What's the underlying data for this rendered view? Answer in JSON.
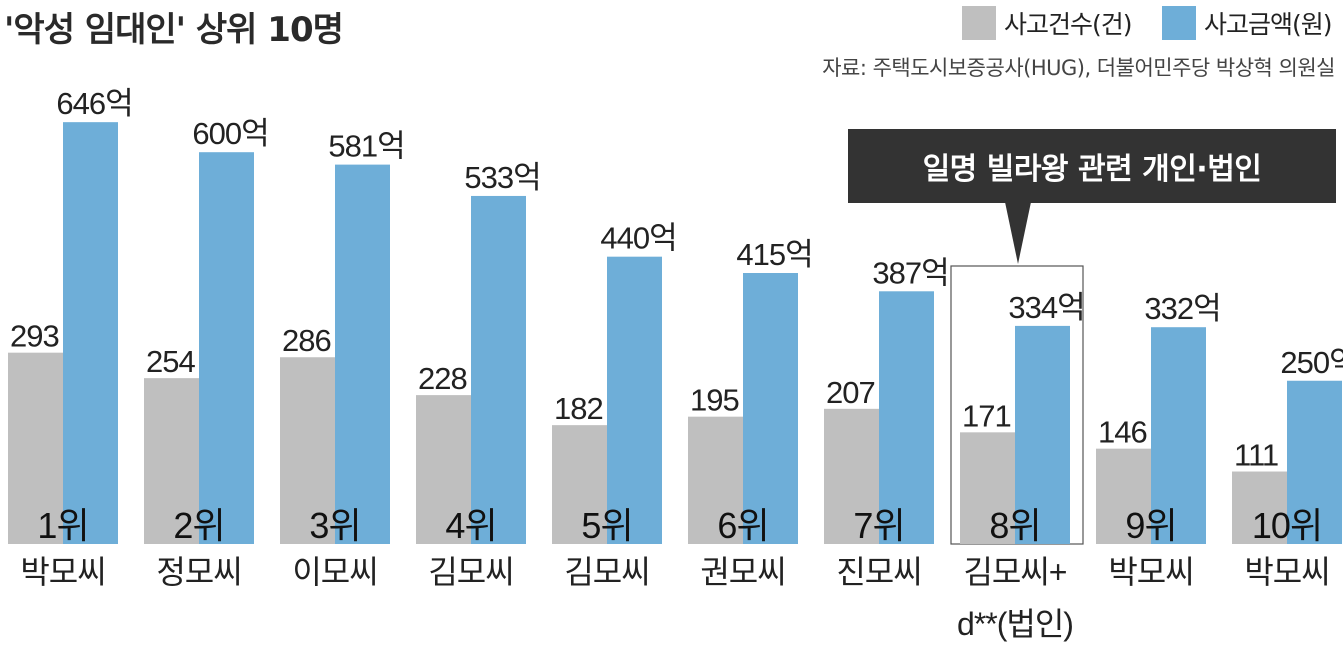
{
  "header": {
    "title": "'악성 임대인' 상위 10명",
    "source": "자료: 주택도시보증공사(HUG), 더불어민주당 박상혁 의원실"
  },
  "legend": [
    {
      "label": "사고건수(건)",
      "color": "#bfbfbf"
    },
    {
      "label": "사고금액(원)",
      "color": "#6eaed8"
    }
  ],
  "callout": {
    "text": "일명 빌라왕 관련 개인·법인",
    "target_rank": "8위"
  },
  "chart_data": {
    "type": "bar",
    "title": "'악성 임대인' 상위 10명",
    "categories": [
      "박모씨",
      "정모씨",
      "이모씨",
      "김모씨",
      "김모씨",
      "권모씨",
      "진모씨",
      "김모씨+\nd**(법인)",
      "박모씨",
      "박모씨"
    ],
    "ranks": [
      "1위",
      "2위",
      "3위",
      "4위",
      "5위",
      "6위",
      "7위",
      "8위",
      "9위",
      "10위"
    ],
    "series": [
      {
        "name": "사고건수(건)",
        "color": "#bfbfbf",
        "values": [
          293,
          254,
          286,
          228,
          182,
          195,
          207,
          171,
          146,
          111
        ],
        "labels": [
          "293",
          "254",
          "286",
          "228",
          "182",
          "195",
          "207",
          "171",
          "146",
          "111"
        ]
      },
      {
        "name": "사고금액(원)",
        "color": "#6eaed8",
        "values": [
          646,
          600,
          581,
          533,
          440,
          415,
          387,
          334,
          332,
          250
        ],
        "labels": [
          "646억",
          "600억",
          "581억",
          "533억",
          "440억",
          "415억",
          "387억",
          "334억",
          "332억",
          "250억"
        ]
      }
    ],
    "highlight_index": 7,
    "grid": false,
    "legend_position": "top-right"
  }
}
